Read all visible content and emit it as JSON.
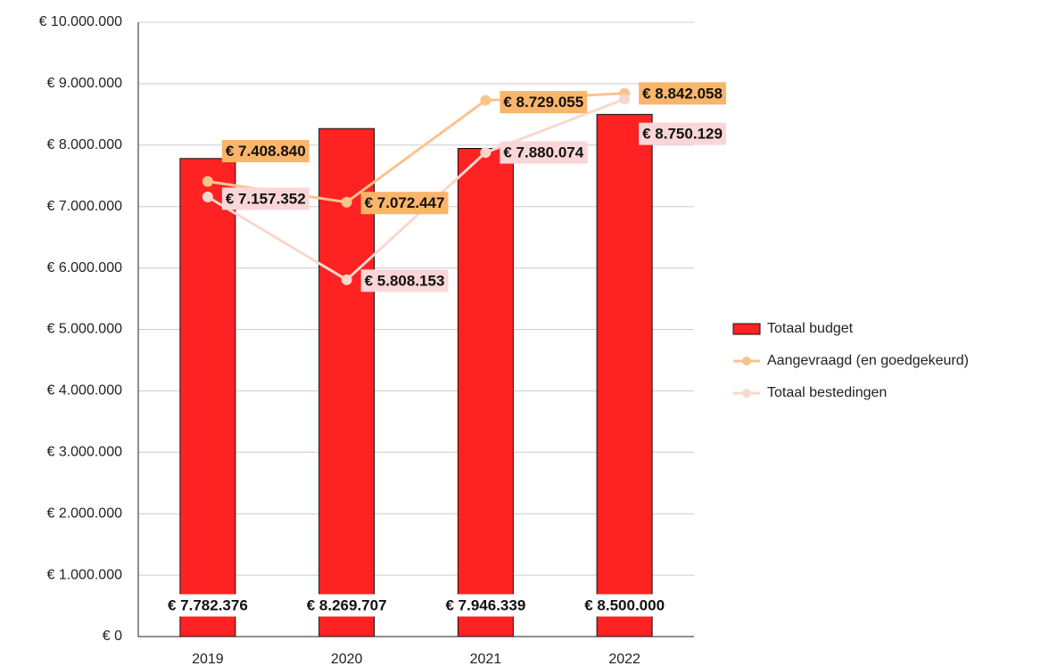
{
  "chart_data": {
    "type": "bar",
    "categories": [
      "2019",
      "2020",
      "2021",
      "2022"
    ],
    "series": [
      {
        "name": "Totaal budget",
        "type": "bar",
        "color": "#ff2222",
        "values": [
          7782376,
          8269707,
          7946339,
          8500000
        ],
        "value_labels": [
          "€ 7.782.376",
          "€ 8.269.707",
          "€ 7.946.339",
          "€ 8.500.000"
        ],
        "label_color": "#ffffff"
      },
      {
        "name": "Aangevraagd (en goedgekeurd)",
        "type": "line",
        "color": "#f8c48e",
        "values": [
          7408840,
          7072447,
          8729055,
          8842058
        ],
        "value_labels": [
          "€ 7.408.840",
          "€ 7.072.447",
          "€ 8.729.055",
          "€ 8.842.058"
        ],
        "label_color": "#f9b56a"
      },
      {
        "name": "Totaal bestedingen",
        "type": "line",
        "color": "#f6d9cc",
        "values": [
          7157352,
          5808153,
          7880074,
          8750129
        ],
        "value_labels": [
          "€ 7.157.352",
          "€ 5.808.153",
          "€ 7.880.074",
          "€ 8.750.129"
        ],
        "label_color": "#fad6d8"
      }
    ],
    "ylim": [
      0,
      10000000
    ],
    "yticks": [
      {
        "value": 0,
        "label": "€ 0"
      },
      {
        "value": 1000000,
        "label": "€ 1.000.000"
      },
      {
        "value": 2000000,
        "label": "€ 2.000.000"
      },
      {
        "value": 3000000,
        "label": "€ 3.000.000"
      },
      {
        "value": 4000000,
        "label": "€ 4.000.000"
      },
      {
        "value": 5000000,
        "label": "€ 5.000.000"
      },
      {
        "value": 6000000,
        "label": "€ 6.000.000"
      },
      {
        "value": 7000000,
        "label": "€ 7.000.000"
      },
      {
        "value": 8000000,
        "label": "€ 8.000.000"
      },
      {
        "value": 9000000,
        "label": "€ 9.000.000"
      },
      {
        "value": 10000000,
        "label": "€ 10.000.000"
      }
    ],
    "grid": true,
    "legend": "right"
  }
}
